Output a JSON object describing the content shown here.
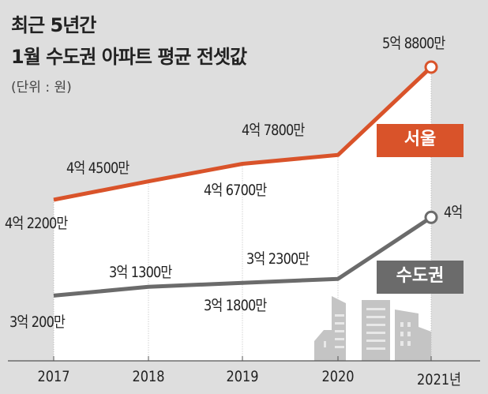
{
  "title_line1": "최근 5년간",
  "title_line2": "1월 수도권 아파트 평균 전셋값",
  "unit": "(단위 : 원)",
  "colors": {
    "seoul": "#d9532a",
    "capital": "#6b6b6b",
    "background": "#dedede",
    "fill": "#ffffff"
  },
  "chart_data": {
    "type": "line",
    "title": "최근 5년간 1월 수도권 아파트 평균 전셋값",
    "ylabel": "(단위 : 원)",
    "categories": [
      "2017",
      "2018",
      "2019",
      "2020",
      "2021년"
    ],
    "unit_note": "values in 만원",
    "series": [
      {
        "name": "서울",
        "values": [
          42200,
          44500,
          46700,
          47800,
          58800
        ],
        "labels": [
          "4억 2200만",
          "4억 4500만",
          "4억 6700만",
          "4억 7800만",
          "5억 8800만"
        ]
      },
      {
        "name": "수도권",
        "values": [
          30200,
          31300,
          31800,
          32300,
          40000
        ],
        "labels": [
          "3억 200만",
          "3억 1300만",
          "3억 1800만",
          "3억 2300만",
          "4억"
        ]
      }
    ],
    "grid": false
  }
}
